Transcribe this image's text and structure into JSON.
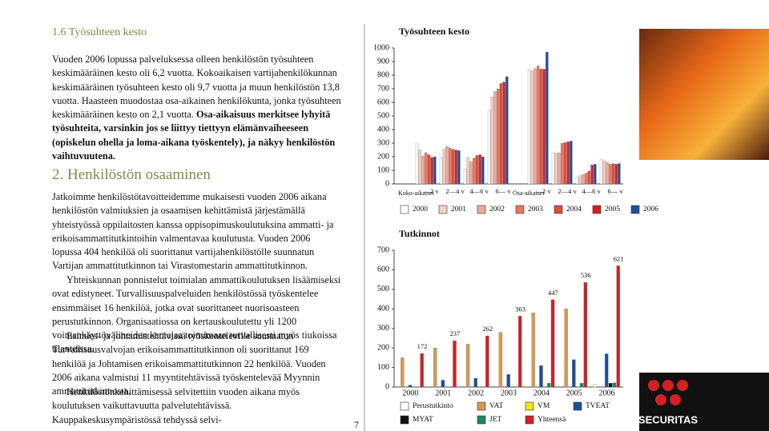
{
  "page": {
    "heading1": "1.6 Työsuhteen kesto",
    "p1": "Vuoden 2006 lopussa palveluksessa olleen henkilöstön työsuhteen keskimääräinen kesto oli 6,2 vuotta. Kokoaikaisen vartijahenkilökunnan keskimääräinen työsuhteen kesto oli 9,7 vuotta ja muun henkilöstön 13,8 vuotta. Haasteen muodostaa osa-aikainen henkilökunta, jonka työsuhteen keskimääräinen kesto on 2,1 vuotta.",
    "p1_bold": "Osa-aikaisuus merkitsee lyhyitä työsuhteita, varsinkin jos se liittyy tiettyyn elämänvaiheeseen (opiskelun ohella ja loma-aikana työskentely), ja näkyy henkilöstön vaihtuvuutena.",
    "heading2": "2. Henkilöstön osaaminen",
    "paragraphs": [
      "Jatkoimme henkilöstötavoitteidemme mukaisesti vuoden 2006 aikana henkilöstön valmiuksien ja osaamisen kehittämistä järjestämällä yhteistyössä oppilaitosten kanssa oppisopimuskoulutuksina ammatti- ja erikoisammattitutkintoihin valmentavaa koulutusta. Vuoden 2006 lopussa 404 henkilöä oli suorittanut vartijahenkilöstölle suunnatun Vartijan ammattitutkinnon tai Virastomestarin ammattitutkinnon.",
      "Yhteiskunnan ponnistelut toimialan ammattikoulutuksen lisäämiseksi ovat edistyneet. Turvallisuuspalveluiden henkilöstössä työskentelee ensimmäiset 16 henkilöä, jotka ovat suorittaneet nuorisoasteen perustutkinnon. Organisaatiossa on kertauskoulutettu yli 1200 voimankäyttövälineiden kantajaa toimimaan turvallisesti myös tiukoissa tilanteissa.",
      "Esimies- ja johtamistehtävissä työskenteleville suunnatun Turvallisuusvalvojan erikoisammattitutkinnon oli suorittanut 169 henkilöä ja Johtamisen erikoisammattitutkinnon 22 henkilöä. Vuoden 2006 aikana valmistui 11 myyntitehtävissä työskentelevää Myynnin ammattitutkinnosta.",
      "Henkilöstönkehittämisessä selvitettiin vuoden aikana myös koulutuksen vaikuttavuutta palvelutehtävissä. Kauppakeskusympäristössä tehdyssä selvi-"
    ],
    "page_number": "7",
    "logo": "SECURITAS"
  },
  "chart_data": [
    {
      "type": "bar",
      "title": "Työsuhteen kesto",
      "group_labels": [
        "Koko-aikaiset",
        "Osa-aikaiset"
      ],
      "categories": [
        "—2 v",
        "2—4 v",
        "4—6 v",
        "6— v",
        "—2 v",
        "2—4 v",
        "4—6 v",
        "6— v"
      ],
      "ylim": [
        0,
        1000
      ],
      "yticks": [
        0,
        100,
        200,
        300,
        400,
        500,
        600,
        700,
        800,
        900,
        1000
      ],
      "series": [
        {
          "name": "2000",
          "color": "#ffffff",
          "values": [
            300,
            190,
            110,
            540,
            840,
            235,
            50,
            180
          ]
        },
        {
          "name": "2001",
          "color": "#f6d0c6",
          "values": [
            250,
            255,
            195,
            640,
            830,
            225,
            60,
            170
          ]
        },
        {
          "name": "2002",
          "color": "#f0a892",
          "values": [
            205,
            275,
            165,
            680,
            850,
            230,
            70,
            160
          ]
        },
        {
          "name": "2003",
          "color": "#e8765c",
          "values": [
            230,
            265,
            190,
            700,
            870,
            300,
            80,
            145
          ]
        },
        {
          "name": "2004",
          "color": "#de4c3a",
          "values": [
            215,
            255,
            210,
            740,
            845,
            305,
            95,
            150
          ]
        },
        {
          "name": "2005",
          "color": "#d81e1e",
          "values": [
            195,
            250,
            215,
            750,
            845,
            310,
            140,
            145
          ]
        },
        {
          "name": "2006",
          "color": "#1f4f98",
          "values": [
            200,
            245,
            200,
            790,
            970,
            315,
            145,
            150
          ]
        }
      ]
    },
    {
      "type": "bar",
      "title": "Tutkinnot",
      "categories": [
        "2000",
        "2001",
        "2002",
        "2003",
        "2004",
        "2005",
        "2006"
      ],
      "ylim": [
        0,
        700
      ],
      "yticks": [
        0,
        100,
        200,
        300,
        400,
        500,
        600,
        700
      ],
      "series": [
        {
          "name": "Perustutkinto",
          "color": "#ffffff",
          "values": [
            0,
            0,
            0,
            0,
            0,
            0,
            15
          ]
        },
        {
          "name": "VAT",
          "color": "#d79a52",
          "values": [
            150,
            200,
            220,
            280,
            380,
            400,
            0
          ]
        },
        {
          "name": "VM",
          "color": "#f2e21a",
          "values": [
            0,
            0,
            0,
            0,
            0,
            0,
            0
          ]
        },
        {
          "name": "TVEAT",
          "color": "#1f4f98",
          "values": [
            10,
            35,
            45,
            65,
            110,
            140,
            170
          ]
        },
        {
          "name": "MYAT",
          "color": "#111111",
          "values": [
            0,
            0,
            0,
            0,
            0,
            0,
            20
          ]
        },
        {
          "name": "JET",
          "color": "#1a8a5a",
          "values": [
            0,
            0,
            0,
            0,
            20,
            20,
            22
          ]
        },
        {
          "name": "Yhteensä",
          "color": "#d42020",
          "values": [
            172,
            237,
            262,
            363,
            447,
            536,
            621
          ],
          "show_labels": true
        }
      ]
    }
  ]
}
